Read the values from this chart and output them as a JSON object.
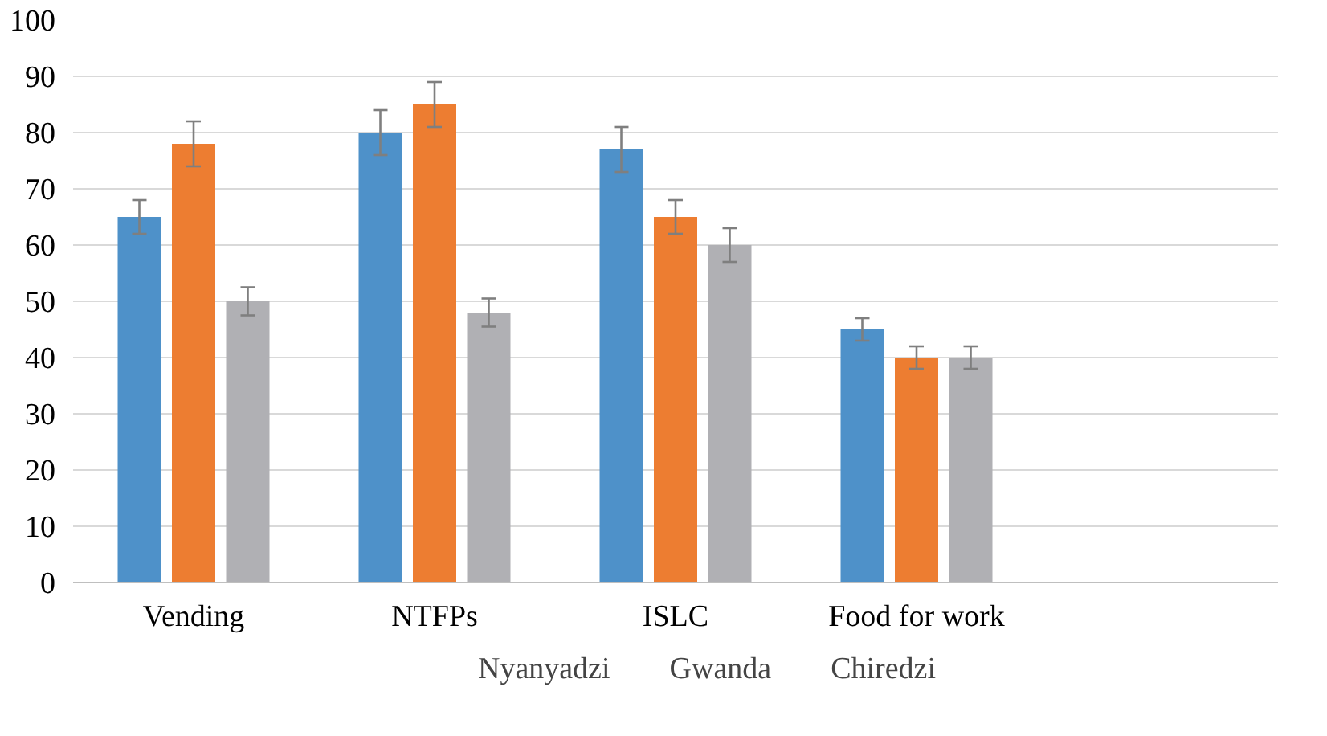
{
  "chart_data": {
    "type": "bar",
    "categories": [
      "Vending",
      "NTFPs",
      "ISLC",
      "Food for work",
      null
    ],
    "series": [
      {
        "name": "Nyanyadzi",
        "color": "#4e91c9",
        "values": [
          65,
          80,
          77,
          45,
          null
        ],
        "errors": [
          3,
          4,
          4,
          2,
          null
        ]
      },
      {
        "name": "Gwanda",
        "color": "#ed7d31",
        "values": [
          78,
          85,
          65,
          40,
          null
        ],
        "errors": [
          4,
          4,
          3,
          2,
          null
        ]
      },
      {
        "name": "Chiredzi",
        "color": "#b0b0b4",
        "values": [
          50,
          48,
          60,
          40,
          null
        ],
        "errors": [
          2.5,
          2.5,
          3,
          2,
          null
        ]
      }
    ],
    "ylim": [
      0,
      100
    ],
    "yticks": [
      0,
      10,
      20,
      30,
      40,
      50,
      60,
      70,
      80,
      90,
      100
    ],
    "grid": "y",
    "legend": "bottom"
  }
}
